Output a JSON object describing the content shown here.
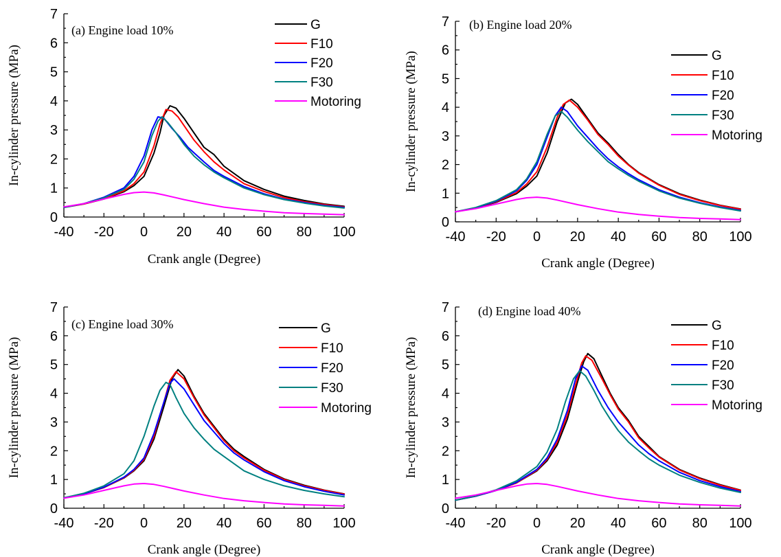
{
  "chart_data": [
    {
      "type": "line",
      "title": "(a) Engine load 10%",
      "xlabel": "Crank angle (Degree)",
      "ylabel": "In-cylinder pressure (MPa)",
      "xlim": [
        -40,
        100
      ],
      "ylim": [
        0,
        7
      ],
      "xticks": [
        "-40",
        "-20",
        "0",
        "20",
        "40",
        "60",
        "80",
        "100"
      ],
      "yticks": [
        "0",
        "1",
        "2",
        "3",
        "4",
        "5",
        "6",
        "7"
      ],
      "legend_position": "top-right",
      "series": [
        {
          "name": "G",
          "color": "#000000",
          "x": [
            -40,
            -30,
            -20,
            -10,
            -5,
            0,
            5,
            8,
            10,
            13,
            16,
            20,
            25,
            30,
            35,
            40,
            50,
            60,
            70,
            80,
            90,
            100
          ],
          "y": [
            0.33,
            0.45,
            0.62,
            0.87,
            1.08,
            1.4,
            2.2,
            2.9,
            3.5,
            3.83,
            3.75,
            3.4,
            2.9,
            2.4,
            2.15,
            1.75,
            1.25,
            0.95,
            0.72,
            0.57,
            0.45,
            0.37
          ]
        },
        {
          "name": "F10",
          "color": "#ff0000",
          "x": [
            -40,
            -30,
            -20,
            -10,
            -5,
            0,
            5,
            8,
            11,
            14,
            17,
            20,
            25,
            30,
            35,
            40,
            50,
            60,
            70,
            80,
            90,
            100
          ],
          "y": [
            0.33,
            0.45,
            0.63,
            0.9,
            1.15,
            1.55,
            2.45,
            3.2,
            3.7,
            3.65,
            3.45,
            3.15,
            2.65,
            2.25,
            1.9,
            1.62,
            1.15,
            0.88,
            0.67,
            0.53,
            0.43,
            0.35
          ]
        },
        {
          "name": "F20",
          "color": "#0000ff",
          "x": [
            -40,
            -30,
            -20,
            -10,
            -5,
            0,
            4,
            7,
            10,
            14,
            18,
            22,
            26,
            30,
            35,
            40,
            50,
            60,
            70,
            80,
            90,
            100
          ],
          "y": [
            0.33,
            0.46,
            0.68,
            1.0,
            1.4,
            2.1,
            3.0,
            3.45,
            3.4,
            3.05,
            2.75,
            2.4,
            2.15,
            1.9,
            1.6,
            1.4,
            1.05,
            0.8,
            0.62,
            0.5,
            0.4,
            0.33
          ]
        },
        {
          "name": "F30",
          "color": "#008080",
          "x": [
            -40,
            -30,
            -20,
            -10,
            -5,
            0,
            4,
            7,
            9,
            12,
            16,
            20,
            25,
            30,
            35,
            40,
            50,
            60,
            70,
            80,
            90,
            100
          ],
          "y": [
            0.33,
            0.46,
            0.66,
            0.95,
            1.3,
            1.9,
            2.8,
            3.3,
            3.45,
            3.25,
            2.9,
            2.5,
            2.1,
            1.8,
            1.55,
            1.35,
            1.0,
            0.77,
            0.6,
            0.48,
            0.38,
            0.31
          ]
        },
        {
          "name": "Motoring",
          "color": "#ff00ff",
          "x": [
            -40,
            -30,
            -20,
            -10,
            -5,
            0,
            5,
            10,
            20,
            30,
            40,
            50,
            60,
            70,
            80,
            90,
            100
          ],
          "y": [
            0.35,
            0.46,
            0.62,
            0.78,
            0.84,
            0.86,
            0.83,
            0.76,
            0.6,
            0.46,
            0.34,
            0.26,
            0.2,
            0.15,
            0.12,
            0.1,
            0.08
          ]
        }
      ]
    },
    {
      "type": "line",
      "title": "(b)  Engine load 20%",
      "xlabel": "Crank angle (Degree)",
      "ylabel": "In-cylinder pressure (MPa)",
      "xlim": [
        -40,
        100
      ],
      "ylim": [
        0,
        7
      ],
      "xticks": [
        "-40",
        "-20",
        "0",
        "20",
        "40",
        "60",
        "80",
        "100"
      ],
      "yticks": [
        "0",
        "1",
        "2",
        "3",
        "4",
        "5",
        "6",
        "7"
      ],
      "legend_position": "top-right",
      "series": [
        {
          "name": "G",
          "color": "#000000",
          "x": [
            -40,
            -30,
            -20,
            -10,
            -5,
            0,
            5,
            10,
            14,
            17,
            20,
            25,
            30,
            35,
            40,
            45,
            50,
            60,
            70,
            80,
            90,
            100
          ],
          "y": [
            0.35,
            0.48,
            0.68,
            0.98,
            1.25,
            1.6,
            2.4,
            3.5,
            4.15,
            4.28,
            4.1,
            3.6,
            3.1,
            2.75,
            2.35,
            2.0,
            1.72,
            1.3,
            0.98,
            0.76,
            0.58,
            0.45
          ]
        },
        {
          "name": "F10",
          "color": "#ff0000",
          "x": [
            -40,
            -30,
            -20,
            -10,
            -5,
            0,
            5,
            10,
            13,
            16,
            20,
            25,
            30,
            35,
            40,
            45,
            50,
            60,
            70,
            80,
            90,
            100
          ],
          "y": [
            0.35,
            0.48,
            0.7,
            1.02,
            1.32,
            1.75,
            2.6,
            3.65,
            4.1,
            4.25,
            4.0,
            3.55,
            3.05,
            2.7,
            2.3,
            1.98,
            1.7,
            1.28,
            0.96,
            0.74,
            0.57,
            0.44
          ]
        },
        {
          "name": "F20",
          "color": "#0000ff",
          "x": [
            -40,
            -30,
            -20,
            -10,
            -5,
            0,
            5,
            9,
            12,
            15,
            20,
            25,
            30,
            35,
            40,
            45,
            50,
            60,
            70,
            80,
            90,
            100
          ],
          "y": [
            0.35,
            0.49,
            0.72,
            1.08,
            1.45,
            2.0,
            2.95,
            3.7,
            4.0,
            3.85,
            3.35,
            2.95,
            2.55,
            2.2,
            1.92,
            1.68,
            1.47,
            1.12,
            0.86,
            0.67,
            0.52,
            0.4
          ]
        },
        {
          "name": "F30",
          "color": "#008080",
          "x": [
            -40,
            -30,
            -20,
            -10,
            -5,
            0,
            5,
            9,
            12,
            15,
            20,
            25,
            30,
            35,
            40,
            45,
            50,
            60,
            70,
            80,
            90,
            100
          ],
          "y": [
            0.35,
            0.5,
            0.74,
            1.12,
            1.5,
            2.1,
            3.05,
            3.7,
            3.85,
            3.65,
            3.2,
            2.8,
            2.45,
            2.1,
            1.85,
            1.62,
            1.42,
            1.08,
            0.83,
            0.65,
            0.5,
            0.38
          ]
        },
        {
          "name": "Motoring",
          "color": "#ff00ff",
          "x": [
            -40,
            -30,
            -20,
            -10,
            -5,
            0,
            5,
            10,
            20,
            30,
            40,
            50,
            60,
            70,
            80,
            90,
            100
          ],
          "y": [
            0.35,
            0.46,
            0.62,
            0.78,
            0.84,
            0.86,
            0.83,
            0.76,
            0.6,
            0.46,
            0.34,
            0.26,
            0.2,
            0.15,
            0.12,
            0.1,
            0.08
          ]
        }
      ]
    },
    {
      "type": "line",
      "title": "(c)  Engine load 30%",
      "xlabel": "Crank angle (Degree)",
      "ylabel": "In-cylinder pressure (MPa)",
      "xlim": [
        -40,
        100
      ],
      "ylim": [
        0,
        7
      ],
      "xticks": [
        "-40",
        "-20",
        "0",
        "20",
        "40",
        "60",
        "80",
        "100"
      ],
      "yticks": [
        "0",
        "1",
        "2",
        "3",
        "4",
        "5",
        "6",
        "7"
      ],
      "legend_position": "top-right",
      "series": [
        {
          "name": "G",
          "color": "#000000",
          "x": [
            -40,
            -30,
            -20,
            -10,
            -5,
            0,
            5,
            10,
            14,
            17,
            20,
            25,
            30,
            35,
            40,
            45,
            50,
            60,
            70,
            80,
            90,
            100
          ],
          "y": [
            0.36,
            0.5,
            0.72,
            1.05,
            1.3,
            1.65,
            2.4,
            3.55,
            4.5,
            4.82,
            4.6,
            3.9,
            3.3,
            2.85,
            2.4,
            2.05,
            1.8,
            1.35,
            1.02,
            0.8,
            0.63,
            0.5
          ]
        },
        {
          "name": "F10",
          "color": "#ff0000",
          "x": [
            -40,
            -30,
            -20,
            -10,
            -5,
            0,
            5,
            10,
            13,
            16,
            20,
            25,
            30,
            35,
            40,
            45,
            50,
            60,
            70,
            80,
            90,
            100
          ],
          "y": [
            0.36,
            0.5,
            0.72,
            1.06,
            1.32,
            1.7,
            2.5,
            3.7,
            4.45,
            4.75,
            4.5,
            3.85,
            3.25,
            2.8,
            2.35,
            2.0,
            1.75,
            1.32,
            1.0,
            0.78,
            0.62,
            0.49
          ]
        },
        {
          "name": "F20",
          "color": "#0000ff",
          "x": [
            -40,
            -30,
            -20,
            -10,
            -5,
            0,
            5,
            10,
            13,
            15,
            20,
            25,
            30,
            35,
            40,
            45,
            50,
            60,
            70,
            80,
            90,
            100
          ],
          "y": [
            0.36,
            0.5,
            0.73,
            1.08,
            1.35,
            1.75,
            2.6,
            3.7,
            4.35,
            4.5,
            4.15,
            3.6,
            3.05,
            2.65,
            2.25,
            1.92,
            1.68,
            1.27,
            0.96,
            0.75,
            0.59,
            0.46
          ]
        },
        {
          "name": "F30",
          "color": "#008080",
          "x": [
            -40,
            -30,
            -20,
            -10,
            -5,
            0,
            5,
            8,
            11,
            13,
            16,
            20,
            25,
            30,
            35,
            40,
            50,
            60,
            70,
            80,
            90,
            100
          ],
          "y": [
            0.36,
            0.52,
            0.78,
            1.2,
            1.65,
            2.5,
            3.55,
            4.1,
            4.38,
            4.3,
            3.85,
            3.3,
            2.8,
            2.4,
            2.05,
            1.8,
            1.3,
            1.0,
            0.78,
            0.62,
            0.5,
            0.4
          ]
        },
        {
          "name": "Motoring",
          "color": "#ff00ff",
          "x": [
            -40,
            -30,
            -20,
            -10,
            -5,
            0,
            5,
            10,
            20,
            30,
            40,
            50,
            60,
            70,
            80,
            90,
            100
          ],
          "y": [
            0.35,
            0.46,
            0.62,
            0.78,
            0.84,
            0.86,
            0.83,
            0.76,
            0.6,
            0.46,
            0.34,
            0.26,
            0.2,
            0.15,
            0.12,
            0.1,
            0.08
          ]
        }
      ]
    },
    {
      "type": "line",
      "title": "(d)  Engine load 40%",
      "xlabel": "Crank angle (Degree)",
      "ylabel": "In-cylinder pressure (MPa)",
      "xlim": [
        -40,
        100
      ],
      "ylim": [
        0,
        7
      ],
      "xticks": [
        "-40",
        "-20",
        "0",
        "20",
        "40",
        "60",
        "80",
        "100"
      ],
      "yticks": [
        "0",
        "1",
        "2",
        "3",
        "4",
        "5",
        "6",
        "7"
      ],
      "legend_position": "top-right",
      "series": [
        {
          "name": "G",
          "color": "#000000",
          "x": [
            -40,
            -30,
            -20,
            -10,
            0,
            5,
            10,
            15,
            20,
            23,
            25,
            28,
            32,
            36,
            40,
            45,
            50,
            55,
            60,
            70,
            80,
            90,
            100
          ],
          "y": [
            0.28,
            0.42,
            0.62,
            0.88,
            1.3,
            1.65,
            2.2,
            3.1,
            4.4,
            5.1,
            5.38,
            5.2,
            4.6,
            4.0,
            3.5,
            3.05,
            2.5,
            2.15,
            1.8,
            1.35,
            1.05,
            0.82,
            0.63
          ]
        },
        {
          "name": "F10",
          "color": "#ff0000",
          "x": [
            -40,
            -30,
            -20,
            -10,
            0,
            5,
            10,
            15,
            20,
            22,
            24,
            27,
            32,
            36,
            40,
            45,
            50,
            55,
            60,
            70,
            80,
            90,
            100
          ],
          "y": [
            0.28,
            0.42,
            0.62,
            0.88,
            1.32,
            1.7,
            2.3,
            3.25,
            4.55,
            5.05,
            5.3,
            5.15,
            4.5,
            3.95,
            3.45,
            3.0,
            2.45,
            2.1,
            1.78,
            1.33,
            1.03,
            0.8,
            0.62
          ]
        },
        {
          "name": "F20",
          "color": "#0000ff",
          "x": [
            -40,
            -30,
            -20,
            -10,
            0,
            5,
            10,
            15,
            19,
            22,
            25,
            30,
            35,
            40,
            45,
            50,
            55,
            60,
            70,
            80,
            90,
            100
          ],
          "y": [
            0.28,
            0.42,
            0.62,
            0.9,
            1.35,
            1.75,
            2.4,
            3.4,
            4.5,
            4.95,
            4.8,
            4.1,
            3.5,
            3.0,
            2.6,
            2.2,
            1.9,
            1.65,
            1.25,
            0.96,
            0.75,
            0.58
          ]
        },
        {
          "name": "F30",
          "color": "#008080",
          "x": [
            -40,
            -30,
            -20,
            -10,
            0,
            5,
            10,
            14,
            18,
            21,
            24,
            28,
            32,
            36,
            40,
            45,
            50,
            55,
            60,
            70,
            80,
            90,
            100
          ],
          "y": [
            0.28,
            0.43,
            0.64,
            0.95,
            1.45,
            1.95,
            2.75,
            3.7,
            4.5,
            4.78,
            4.6,
            4.1,
            3.55,
            3.1,
            2.7,
            2.3,
            2.0,
            1.72,
            1.5,
            1.15,
            0.9,
            0.7,
            0.55
          ]
        },
        {
          "name": "Motoring",
          "color": "#ff00ff",
          "x": [
            -40,
            -30,
            -20,
            -10,
            -5,
            0,
            5,
            10,
            20,
            30,
            40,
            50,
            60,
            70,
            80,
            90,
            100
          ],
          "y": [
            0.35,
            0.46,
            0.62,
            0.78,
            0.84,
            0.86,
            0.83,
            0.76,
            0.6,
            0.46,
            0.34,
            0.26,
            0.2,
            0.15,
            0.12,
            0.1,
            0.08
          ]
        }
      ]
    }
  ]
}
